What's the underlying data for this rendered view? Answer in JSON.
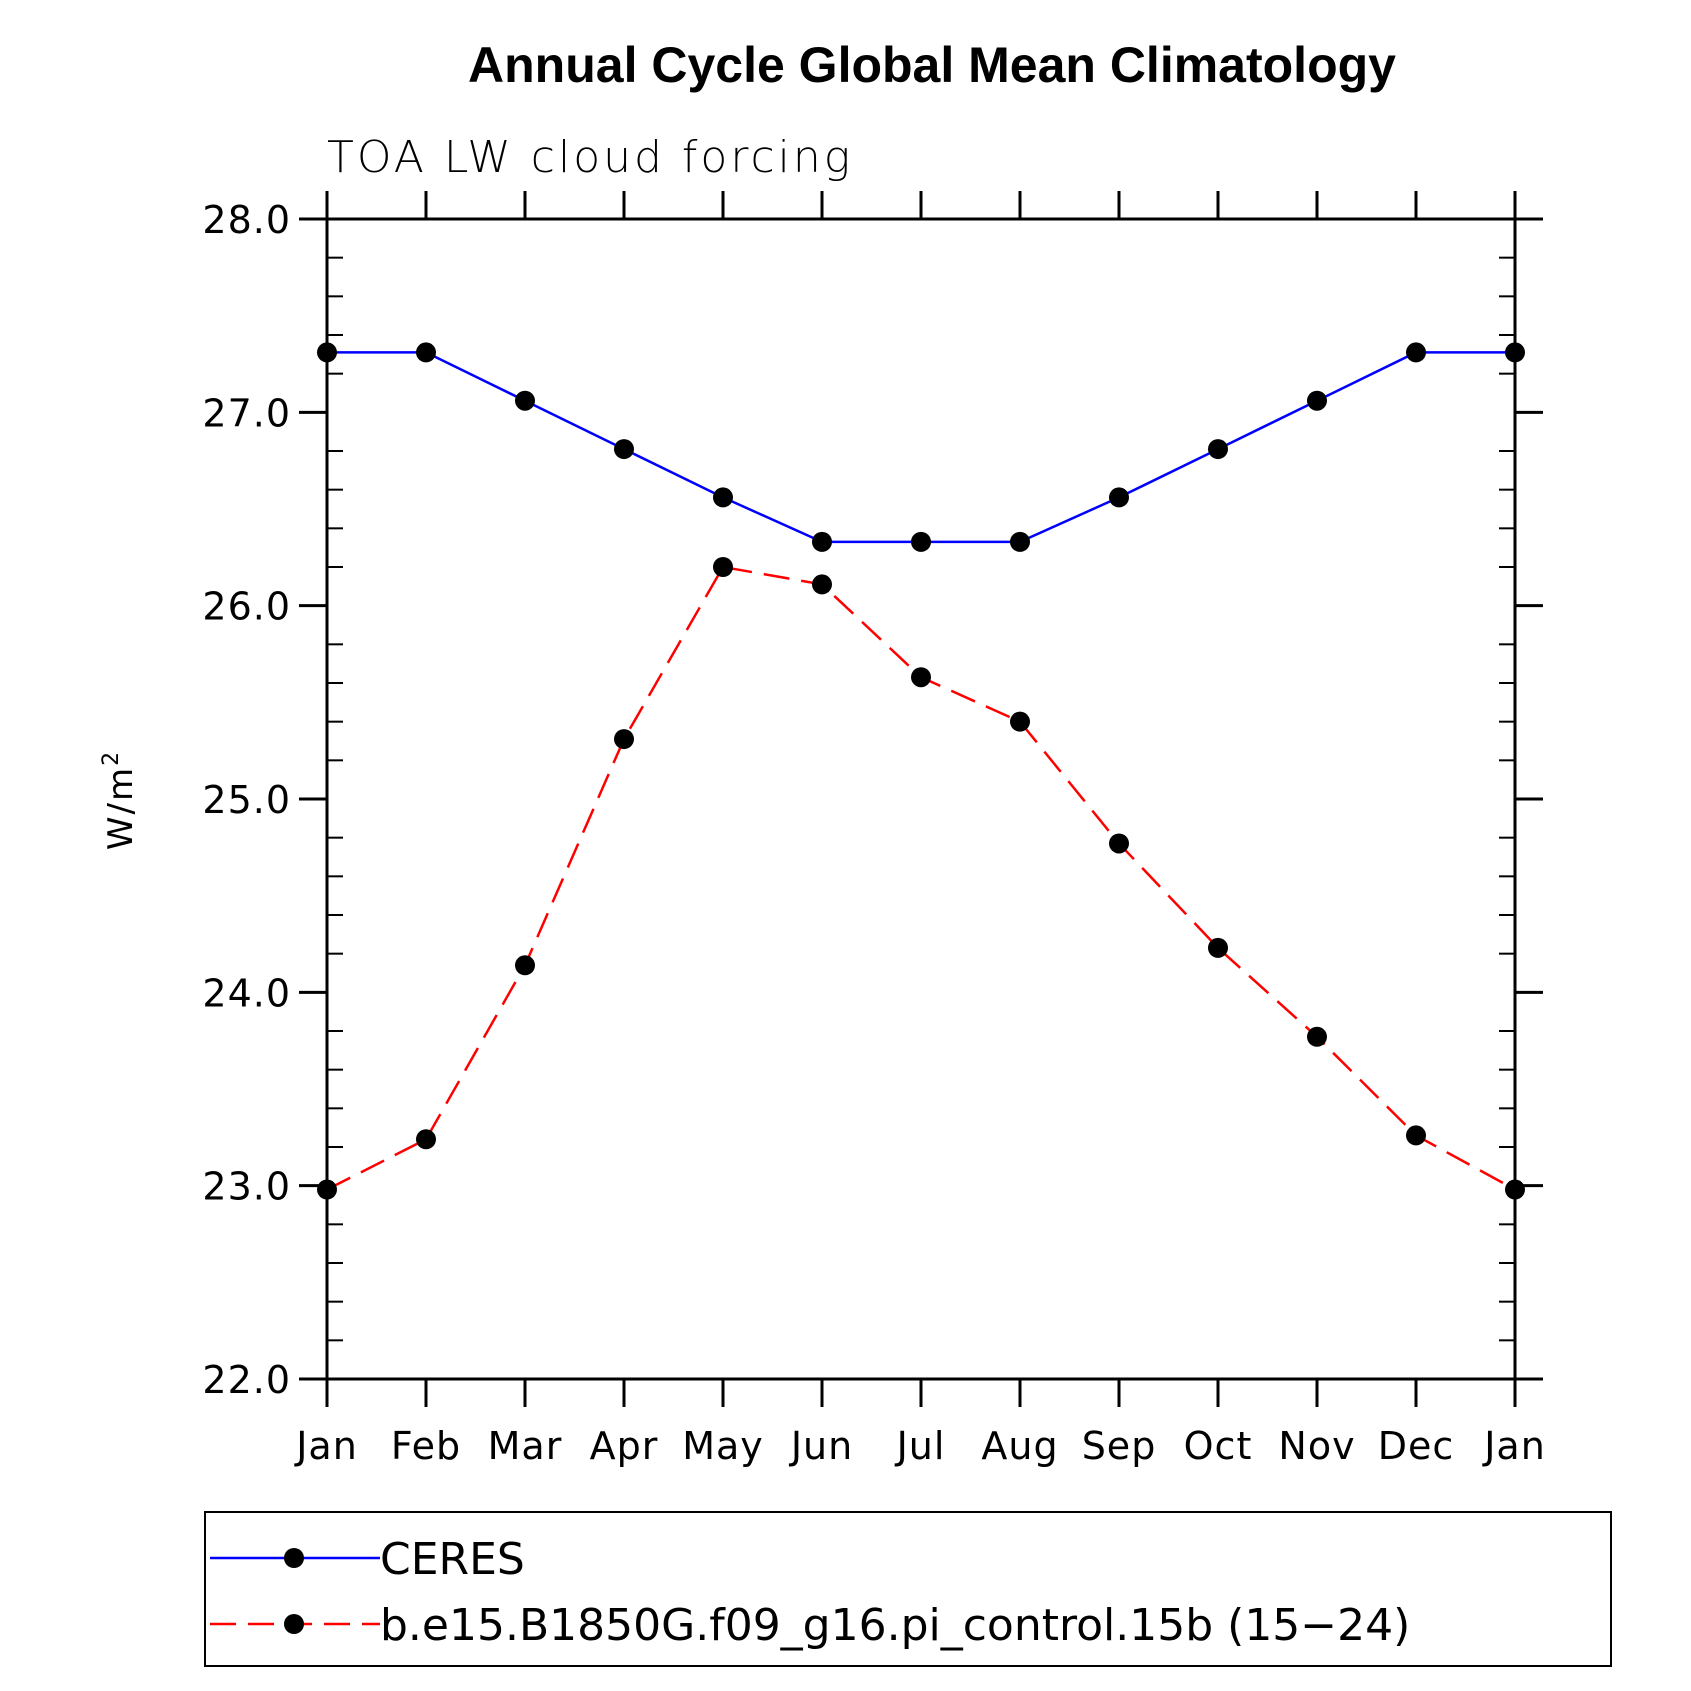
{
  "chart_data": {
    "type": "line",
    "title": "Annual Cycle Global Mean Climatology",
    "subtitle": "TOA LW cloud forcing",
    "xlabel": "",
    "ylabel": "W/m",
    "ylabel_superscript": "2",
    "categories": [
      "Jan",
      "Feb",
      "Mar",
      "Apr",
      "May",
      "Jun",
      "Jul",
      "Aug",
      "Sep",
      "Oct",
      "Nov",
      "Dec",
      "Jan"
    ],
    "ylim": [
      22.0,
      28.0
    ],
    "yticks": [
      "22.0",
      "23.0",
      "24.0",
      "25.0",
      "26.0",
      "27.0",
      "28.0"
    ],
    "y_minor_step": 0.2,
    "grid": false,
    "legend_position": "bottom",
    "series": [
      {
        "name": "CERES",
        "color": "#0000ff",
        "dash": "solid",
        "marker": "filled-circle",
        "values": [
          27.31,
          27.31,
          27.06,
          26.81,
          26.56,
          26.33,
          26.33,
          26.33,
          26.56,
          26.81,
          27.06,
          27.31,
          27.31
        ]
      },
      {
        "name": "b.e15.B1850G.f09_g16.pi_control.15b (15−24)",
        "color": "#ff0000",
        "dash": "dashed",
        "marker": "filled-circle",
        "values": [
          22.98,
          23.24,
          24.14,
          25.31,
          26.2,
          26.11,
          25.63,
          25.4,
          24.77,
          24.23,
          23.77,
          23.26,
          22.98
        ]
      }
    ]
  }
}
